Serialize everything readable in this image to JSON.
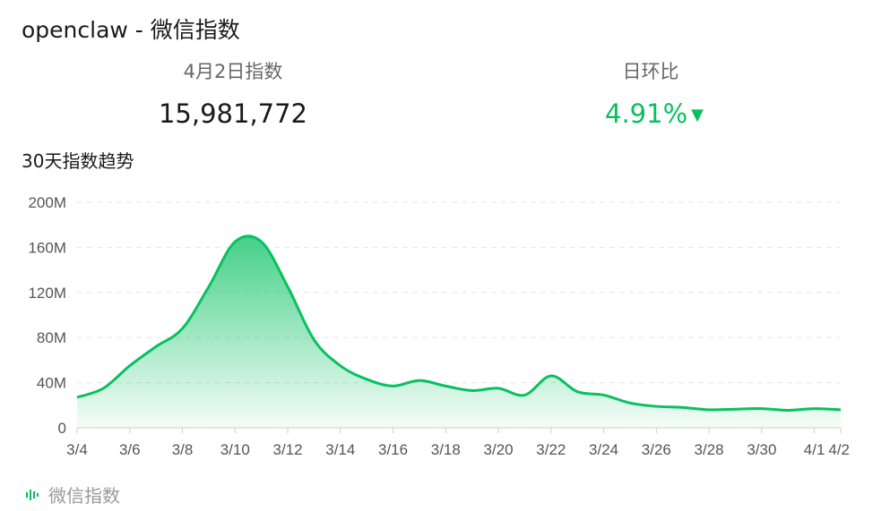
{
  "title": "openclaw - 微信指数",
  "stats": {
    "index_label": "4月2日指数",
    "index_value": "15,981,772",
    "ratio_label": "日环比",
    "ratio_value": "4.91%",
    "ratio_direction": "down-triangle-icon",
    "ratio_color": "#07c160"
  },
  "trend_title": "30天指数趋势",
  "footer": {
    "label": "微信指数",
    "icon": "wechat-index-logo-icon"
  },
  "chart_data": {
    "type": "area",
    "title": "30天指数趋势",
    "xlabel": "",
    "ylabel": "",
    "ylim": [
      0,
      200000000
    ],
    "y_ticks": [
      "0",
      "40M",
      "80M",
      "120M",
      "160M",
      "200M"
    ],
    "x_tick_labels": [
      "3/4",
      "3/6",
      "3/8",
      "3/10",
      "3/12",
      "3/14",
      "3/16",
      "3/18",
      "3/20",
      "3/22",
      "3/24",
      "3/26",
      "3/28",
      "3/30",
      "4/1",
      "4/2"
    ],
    "grid": true,
    "line_color": "#07c160",
    "x": [
      "3/4",
      "3/5",
      "3/6",
      "3/7",
      "3/8",
      "3/9",
      "3/10",
      "3/11",
      "3/12",
      "3/13",
      "3/14",
      "3/15",
      "3/16",
      "3/17",
      "3/18",
      "3/19",
      "3/20",
      "3/21",
      "3/22",
      "3/23",
      "3/24",
      "3/25",
      "3/26",
      "3/27",
      "3/28",
      "3/29",
      "3/30",
      "3/31",
      "4/1",
      "4/2"
    ],
    "values": [
      27000000,
      35000000,
      55000000,
      72000000,
      88000000,
      125000000,
      165000000,
      165000000,
      125000000,
      78000000,
      55000000,
      43000000,
      37000000,
      42000000,
      37000000,
      33000000,
      35000000,
      29000000,
      46000000,
      32000000,
      29000000,
      22000000,
      19000000,
      18000000,
      16000000,
      16500000,
      17000000,
      15500000,
      17000000,
      16000000
    ]
  }
}
